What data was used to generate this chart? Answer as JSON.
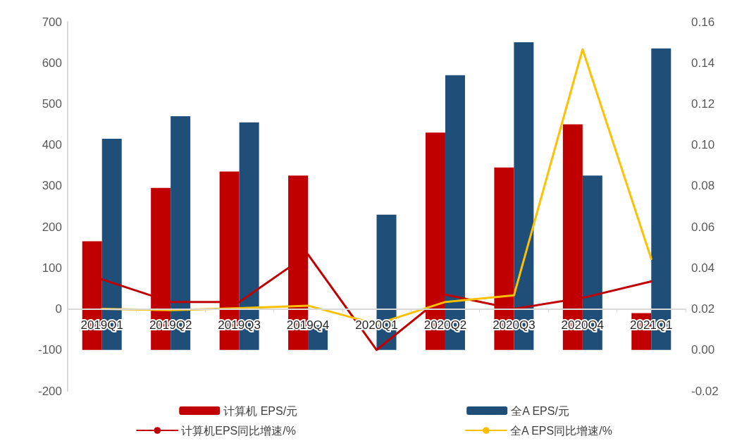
{
  "chart_data": {
    "type": "bar",
    "categories": [
      "2019Q1",
      "2019Q2",
      "2019Q3",
      "2019Q4",
      "2020Q1",
      "2020Q2",
      "2020Q3",
      "2020Q4",
      "2021Q1"
    ],
    "series": [
      {
        "name": "计算机 EPS/元",
        "color": "#c00000",
        "axis": "y2",
        "values": [
          0.053,
          0.079,
          0.087,
          0.085,
          null,
          0.106,
          0.089,
          0.11,
          0.018
        ]
      },
      {
        "name": "全A EPS/元",
        "color": "#1f4e79",
        "axis": "y2",
        "values": [
          0.103,
          0.114,
          0.111,
          0.012,
          0.066,
          0.134,
          0.15,
          0.085,
          0.147
        ]
      },
      {
        "name": "计算机EPS同比增速/%",
        "color": "#c00000",
        "type": "line",
        "axis": "y",
        "values": [
          72,
          17,
          17,
          133,
          -100,
          35,
          0,
          27,
          67
        ]
      },
      {
        "name": "全A EPS同比增速/%",
        "color": "#ffc000",
        "type": "line",
        "axis": "y",
        "values": [
          0,
          -3,
          2,
          8,
          -37,
          17,
          33,
          633,
          122
        ]
      }
    ],
    "ylim": [
      -200,
      700
    ],
    "yticks": [
      -200,
      -100,
      0,
      100,
      200,
      300,
      400,
      500,
      600,
      700
    ],
    "y2lim": [
      -0.02,
      0.16
    ],
    "y2ticks": [
      {
        "value": -0.02,
        "label": "-0.02"
      },
      {
        "value": 0,
        "label": "0.00"
      },
      {
        "value": 0.02,
        "label": "0.02"
      },
      {
        "value": 0.04,
        "label": "0.04"
      },
      {
        "value": 0.06,
        "label": "0.06"
      },
      {
        "value": 0.08,
        "label": "0.08"
      },
      {
        "value": 0.1,
        "label": "0.10"
      },
      {
        "value": 0.12,
        "label": "0.12"
      },
      {
        "value": 0.14,
        "label": "0.14"
      },
      {
        "value": 0.16,
        "label": "0.16"
      }
    ],
    "grid": false,
    "legend": "bottom",
    "marker": "none",
    "line_style": "solid"
  }
}
